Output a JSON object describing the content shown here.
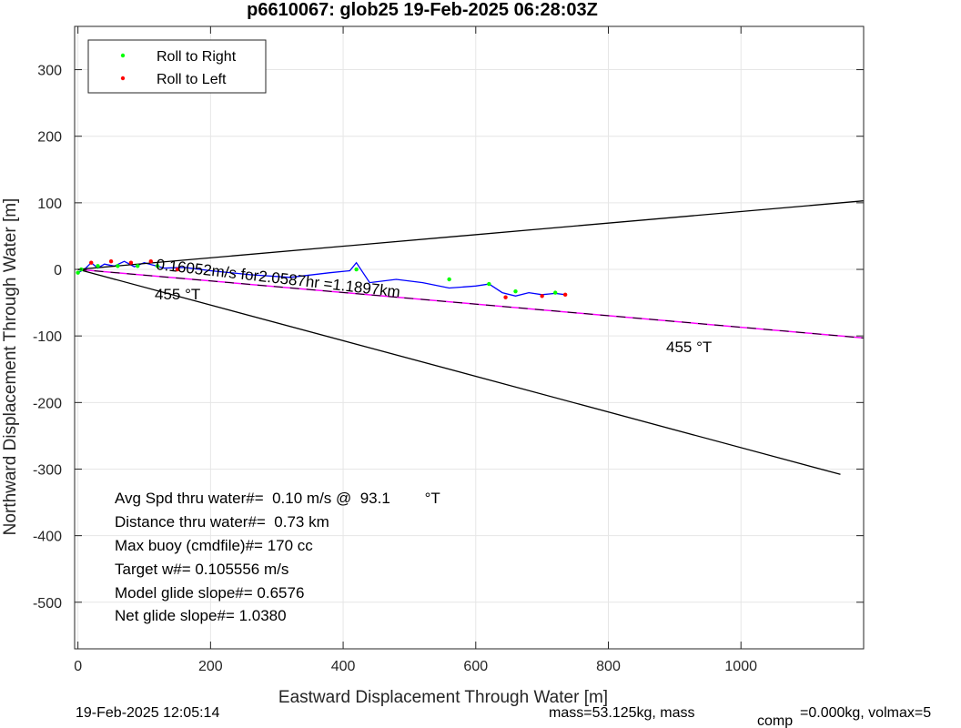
{
  "chart_data": {
    "type": "line",
    "title": "p6610067: glob25 19-Feb-2025 06:28:03Z",
    "xlabel": "Eastward Displacement Through Water [m]",
    "ylabel": "Northward Displacement Through Water [m]",
    "xlim": [
      -5,
      1185
    ],
    "ylim": [
      -570,
      365
    ],
    "xticks": [
      0,
      200,
      400,
      600,
      800,
      1000
    ],
    "yticks": [
      300,
      200,
      100,
      0,
      -100,
      -200,
      -300,
      -400,
      -500
    ],
    "grid": true,
    "legend": {
      "placement": "top-left",
      "entries": [
        {
          "label": "Roll to Right",
          "color": "#00ff00"
        },
        {
          "label": "Roll to Left",
          "color": "#ff0000"
        }
      ]
    },
    "series": [
      {
        "name": "glider track",
        "color": "#0000ff",
        "x": [
          0,
          10,
          20,
          30,
          40,
          55,
          70,
          85,
          100,
          115,
          130,
          160,
          200,
          260,
          320,
          380,
          410,
          420,
          440,
          480,
          520,
          560,
          600,
          620,
          640,
          660,
          680,
          700,
          720,
          735
        ],
        "y": [
          -5,
          0,
          10,
          2,
          8,
          5,
          12,
          4,
          10,
          6,
          2,
          3,
          -2,
          -8,
          -12,
          -5,
          -2,
          10,
          -20,
          -15,
          -20,
          -28,
          -25,
          -22,
          -35,
          -40,
          -35,
          -38,
          -36,
          -38
        ]
      },
      {
        "name": "depth-averaged direction",
        "color": "#ff00ff",
        "x": [
          0,
          1185
        ],
        "y": [
          0,
          -103
        ]
      },
      {
        "name": "heading cone upper",
        "color": "#000000",
        "x": [
          0,
          1185
        ],
        "y": [
          0,
          103
        ]
      },
      {
        "name": "heading cone lower",
        "color": "#000000",
        "x": [
          0,
          1150
        ],
        "y": [
          0,
          -308
        ]
      }
    ],
    "roll_right_points": {
      "color": "#00ff00",
      "x": [
        0,
        5,
        30,
        60,
        90,
        120,
        420,
        560,
        620,
        660,
        720
      ],
      "y": [
        -5,
        0,
        5,
        5,
        5,
        5,
        0,
        -15,
        -22,
        -33,
        -35
      ]
    },
    "roll_left_points": {
      "color": "#ff0000",
      "x": [
        20,
        50,
        80,
        110,
        150,
        645,
        700,
        735
      ],
      "y": [
        10,
        12,
        10,
        12,
        0,
        -42,
        -40,
        -38
      ]
    },
    "annotations": {
      "track_speed": "0.16052m/s for2.0587hr =1.1897km",
      "heading_left": "455 °T",
      "heading_right": "455 °T"
    },
    "stats": [
      "Avg Spd thru water#=  0.10 m/s @  93.1        °T",
      "Distance thru water#=  0.73 km",
      "Max buoy (cmdfile)#= 170 cc",
      "Target w#= 0.105556 m/s",
      "Model glide slope#= 0.6576",
      "Net glide slope#= 1.0380"
    ]
  },
  "footer": {
    "timestamp": "19-Feb-2025 12:05:14",
    "mass_text": "mass=53.125kg, mass",
    "comp_subscript": "comp",
    "mass_tail": "=0.000kg, volmax=5"
  }
}
